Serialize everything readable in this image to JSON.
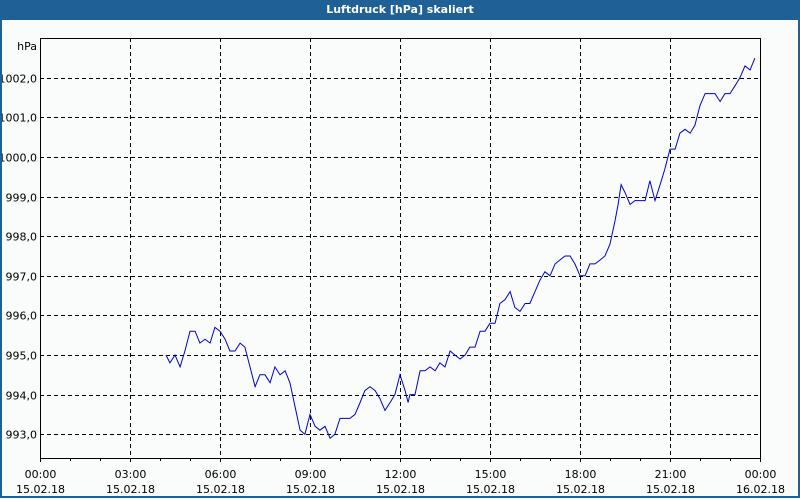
{
  "window": {
    "title": "Luftdruck [hPa] skaliert"
  },
  "colors": {
    "titlebar": "#1f6196",
    "line": "#0000cc",
    "background": "#fafcfb"
  },
  "chart_data": {
    "type": "line",
    "title": "Luftdruck [hPa] skaliert",
    "ylabel": "hPa",
    "xlabel": "",
    "ylim": [
      992.4,
      1003.0
    ],
    "grid": true,
    "y_ticks": [
      "993,0",
      "994,0",
      "995,0",
      "996,0",
      "997,0",
      "998,0",
      "999,0",
      "1000,0",
      "1001,0",
      "1002,0"
    ],
    "x_ticks": [
      {
        "time": "00:00",
        "date": "15.02.18"
      },
      {
        "time": "03:00",
        "date": "15.02.18"
      },
      {
        "time": "06:00",
        "date": "15.02.18"
      },
      {
        "time": "09:00",
        "date": "15.02.18"
      },
      {
        "time": "12:00",
        "date": "15.02.18"
      },
      {
        "time": "15:00",
        "date": "15.02.18"
      },
      {
        "time": "18:00",
        "date": "15.02.18"
      },
      {
        "time": "21:00",
        "date": "15.02.18"
      },
      {
        "time": "00:00",
        "date": "16.02.18"
      }
    ],
    "series": [
      {
        "name": "Luftdruck",
        "x_hours": [
          4.2,
          4.33,
          4.5,
          4.67,
          4.83,
          5.0,
          5.17,
          5.33,
          5.5,
          5.67,
          5.83,
          6.0,
          6.17,
          6.33,
          6.5,
          6.67,
          6.83,
          7.0,
          7.17,
          7.33,
          7.5,
          7.67,
          7.83,
          8.0,
          8.17,
          8.33,
          8.5,
          8.67,
          8.83,
          9.0,
          9.17,
          9.33,
          9.5,
          9.67,
          9.83,
          10.0,
          10.17,
          10.33,
          10.5,
          10.67,
          10.83,
          11.0,
          11.17,
          11.33,
          11.5,
          11.67,
          11.83,
          12.0,
          12.17,
          12.27,
          12.33,
          12.5,
          12.67,
          12.83,
          13.0,
          13.17,
          13.33,
          13.5,
          13.67,
          13.83,
          14.0,
          14.17,
          14.33,
          14.5,
          14.67,
          14.83,
          15.0,
          15.17,
          15.33,
          15.5,
          15.67,
          15.83,
          16.0,
          16.17,
          16.33,
          16.5,
          16.67,
          16.83,
          17.0,
          17.17,
          17.33,
          17.5,
          17.67,
          17.83,
          18.0,
          18.17,
          18.33,
          18.5,
          18.67,
          18.83,
          19.0,
          19.17,
          19.27,
          19.37,
          19.5,
          19.67,
          19.83,
          20.0,
          20.17,
          20.33,
          20.5,
          20.67,
          20.83,
          21.0,
          21.17,
          21.33,
          21.5,
          21.67,
          21.83,
          22.0,
          22.17,
          22.33,
          22.5,
          22.67,
          22.83,
          23.0,
          23.17,
          23.33,
          23.5,
          23.67,
          23.83
        ],
        "values": [
          995.0,
          994.8,
          995.0,
          994.7,
          995.1,
          995.6,
          995.6,
          995.3,
          995.4,
          995.3,
          995.7,
          995.6,
          995.4,
          995.1,
          995.1,
          995.3,
          995.2,
          994.7,
          994.2,
          994.5,
          994.5,
          994.3,
          994.7,
          994.5,
          994.6,
          994.3,
          993.7,
          993.1,
          993.0,
          993.5,
          993.2,
          993.1,
          993.2,
          992.9,
          993.0,
          993.4,
          993.4,
          993.4,
          993.5,
          993.8,
          994.1,
          994.2,
          994.1,
          993.9,
          993.6,
          993.8,
          994.0,
          994.5,
          994.1,
          993.8,
          994.0,
          994.0,
          994.6,
          994.6,
          994.7,
          994.6,
          994.8,
          994.7,
          995.1,
          995.0,
          994.9,
          995.0,
          995.2,
          995.2,
          995.6,
          995.6,
          995.8,
          995.8,
          996.3,
          996.4,
          996.6,
          996.2,
          996.1,
          996.3,
          996.3,
          996.6,
          996.9,
          997.1,
          997.0,
          997.3,
          997.4,
          997.5,
          997.5,
          997.3,
          997.0,
          997.0,
          997.3,
          997.3,
          997.4,
          997.5,
          997.8,
          998.4,
          998.8,
          999.3,
          999.1,
          998.8,
          998.9,
          998.9,
          998.9,
          999.4,
          998.9,
          999.3,
          999.7,
          1000.2,
          1000.2,
          1000.6,
          1000.7,
          1000.6,
          1000.8,
          1001.3,
          1001.6,
          1001.6,
          1001.6,
          1001.4,
          1001.6,
          1001.6,
          1001.8,
          1002.0,
          1002.3,
          1002.2,
          1002.5
        ]
      }
    ]
  }
}
